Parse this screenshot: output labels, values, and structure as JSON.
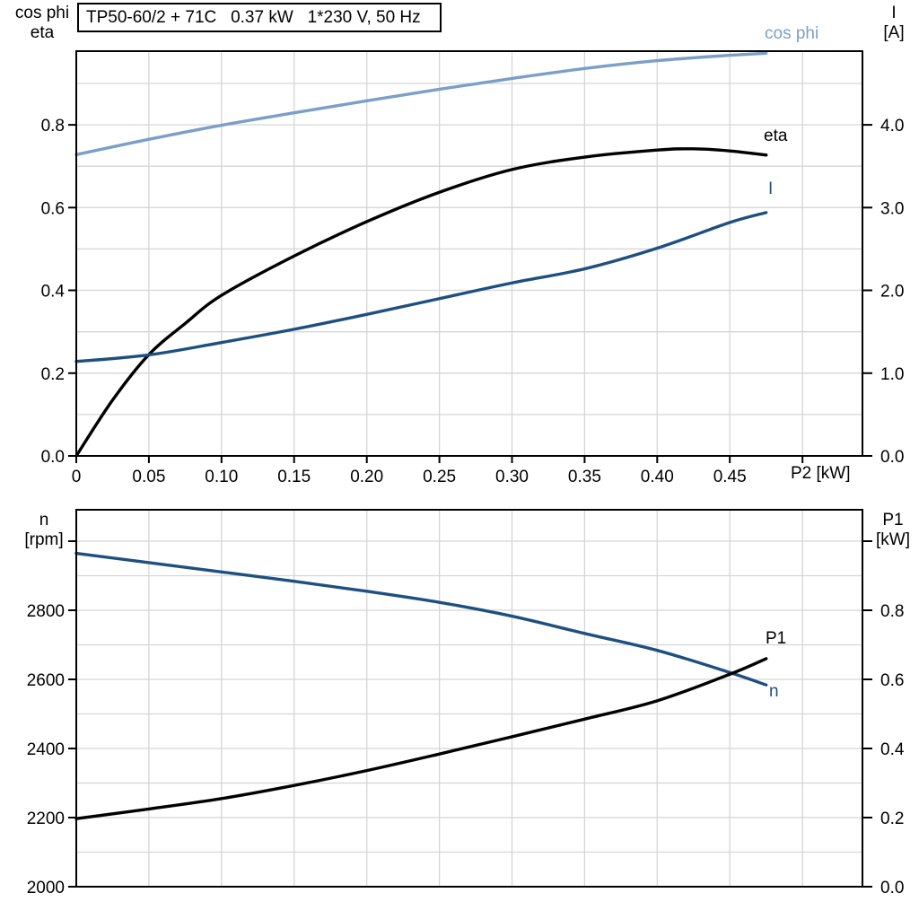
{
  "title_box": {
    "text": "TP50-60/2 + 71C   0.37 kW   1*230 V, 50 Hz"
  },
  "colors": {
    "cos_phi": "#7b9fc7",
    "dark_blue": "#1d5080",
    "black": "#000000",
    "grid": "#d5d5d5",
    "axis": "#000000"
  },
  "top_chart_labels": {
    "left_title_1": "cos phi",
    "left_title_2": "eta",
    "right_title_1": "I",
    "right_title_2": "[A]",
    "x_label": "P2 [kW]",
    "curve_cos_phi": "cos phi",
    "curve_eta": "eta",
    "curve_I": "I"
  },
  "bottom_chart_labels": {
    "left_title_1": "n",
    "left_title_2": "[rpm]",
    "right_title_1": "P1",
    "right_title_2": "[kW]",
    "curve_n": "n",
    "curve_P1": "P1"
  },
  "chart_data": [
    {
      "type": "line",
      "title": "TP50-60/2 + 71C 0.37 kW 1*230 V, 50 Hz",
      "xlabel": "P2 [kW]",
      "xlim": [
        0,
        0.5413
      ],
      "x_grid": [
        0.05,
        0.1,
        0.15,
        0.2,
        0.25,
        0.3,
        0.35,
        0.4,
        0.45,
        0.5
      ],
      "x_ticks": [
        {
          "v": 0,
          "label": "0"
        },
        {
          "v": 0.05,
          "label": "0.05"
        },
        {
          "v": 0.1,
          "label": "0.10"
        },
        {
          "v": 0.15,
          "label": "0.15"
        },
        {
          "v": 0.2,
          "label": "0.20"
        },
        {
          "v": 0.25,
          "label": "0.25"
        },
        {
          "v": 0.3,
          "label": "0.30"
        },
        {
          "v": 0.35,
          "label": "0.35"
        },
        {
          "v": 0.4,
          "label": "0.40"
        },
        {
          "v": 0.45,
          "label": "0.45"
        },
        {
          "v": 0.5,
          "label": ""
        }
      ],
      "left_axis": {
        "label": "cos phi / eta",
        "lim": [
          0,
          0.978
        ],
        "grid": [
          0.1,
          0.2,
          0.3,
          0.4,
          0.5,
          0.6,
          0.7,
          0.8,
          0.9
        ],
        "ticks": [
          {
            "v": 0.0,
            "label": "0.0"
          },
          {
            "v": 0.2,
            "label": "0.2"
          },
          {
            "v": 0.4,
            "label": "0.4"
          },
          {
            "v": 0.6,
            "label": "0.6"
          },
          {
            "v": 0.8,
            "label": "0.8"
          }
        ]
      },
      "right_axis": {
        "label": "I [A]",
        "lim": [
          0,
          4.89
        ],
        "ticks": [
          {
            "v": 0.0,
            "label": "0.0"
          },
          {
            "v": 1.0,
            "label": "1.0"
          },
          {
            "v": 2.0,
            "label": "2.0"
          },
          {
            "v": 3.0,
            "label": "3.0"
          },
          {
            "v": 4.0,
            "label": "4.0"
          }
        ]
      },
      "series": [
        {
          "name": "cos phi",
          "axis": "left",
          "color": "cos_phi",
          "x": [
            0,
            0.05,
            0.1,
            0.15,
            0.2,
            0.25,
            0.3,
            0.35,
            0.4,
            0.45,
            0.475
          ],
          "y": [
            0.728,
            0.765,
            0.799,
            0.829,
            0.858,
            0.886,
            0.912,
            0.936,
            0.955,
            0.968,
            0.973
          ]
        },
        {
          "name": "eta",
          "axis": "left",
          "color": "black",
          "x": [
            0,
            0.025,
            0.05,
            0.075,
            0.1,
            0.15,
            0.2,
            0.25,
            0.3,
            0.35,
            0.4,
            0.425,
            0.45,
            0.475
          ],
          "y": [
            0,
            0.135,
            0.245,
            0.32,
            0.388,
            0.483,
            0.566,
            0.637,
            0.692,
            0.722,
            0.739,
            0.742,
            0.737,
            0.727
          ]
        },
        {
          "name": "I",
          "axis": "right",
          "color": "dark_blue",
          "x": [
            0,
            0.05,
            0.1,
            0.15,
            0.2,
            0.25,
            0.3,
            0.35,
            0.4,
            0.45,
            0.475
          ],
          "y": [
            1.14,
            1.22,
            1.37,
            1.53,
            1.71,
            1.9,
            2.09,
            2.26,
            2.51,
            2.82,
            2.94
          ]
        }
      ]
    },
    {
      "type": "line",
      "title": "",
      "xlabel": "",
      "xlim": [
        0,
        0.5413
      ],
      "x_grid": [
        0.05,
        0.1,
        0.15,
        0.2,
        0.25,
        0.3,
        0.35,
        0.4,
        0.45,
        0.5
      ],
      "x_ticks": [],
      "left_axis": {
        "label": "n [rpm]",
        "lim": [
          2000,
          3091
        ],
        "grid": [
          2100,
          2200,
          2300,
          2400,
          2500,
          2600,
          2700,
          2800,
          2900,
          3000
        ],
        "ticks": [
          {
            "v": 2000,
            "label": "2000"
          },
          {
            "v": 2200,
            "label": "2200"
          },
          {
            "v": 2400,
            "label": "2400"
          },
          {
            "v": 2600,
            "label": "2600"
          },
          {
            "v": 2800,
            "label": "2800"
          },
          {
            "v": 3000,
            "label": ""
          }
        ]
      },
      "right_axis": {
        "label": "P1 [kW]",
        "lim": [
          0,
          1.091
        ],
        "ticks": [
          {
            "v": 0.0,
            "label": "0.0"
          },
          {
            "v": 0.2,
            "label": "0.2"
          },
          {
            "v": 0.4,
            "label": "0.4"
          },
          {
            "v": 0.6,
            "label": "0.6"
          },
          {
            "v": 0.8,
            "label": "0.8"
          },
          {
            "v": 1.0,
            "label": ""
          }
        ]
      },
      "series": [
        {
          "name": "n",
          "axis": "left",
          "color": "dark_blue",
          "x": [
            0,
            0.05,
            0.1,
            0.15,
            0.2,
            0.25,
            0.3,
            0.35,
            0.4,
            0.45,
            0.475
          ],
          "y": [
            2965,
            2938,
            2911,
            2884,
            2855,
            2823,
            2783,
            2733,
            2684,
            2620,
            2584
          ]
        },
        {
          "name": "P1",
          "axis": "right",
          "color": "black",
          "x": [
            0,
            0.05,
            0.1,
            0.15,
            0.2,
            0.25,
            0.3,
            0.35,
            0.4,
            0.45,
            0.475
          ],
          "y": [
            0.197,
            0.225,
            0.255,
            0.293,
            0.336,
            0.384,
            0.434,
            0.485,
            0.538,
            0.615,
            0.66
          ]
        }
      ]
    }
  ]
}
